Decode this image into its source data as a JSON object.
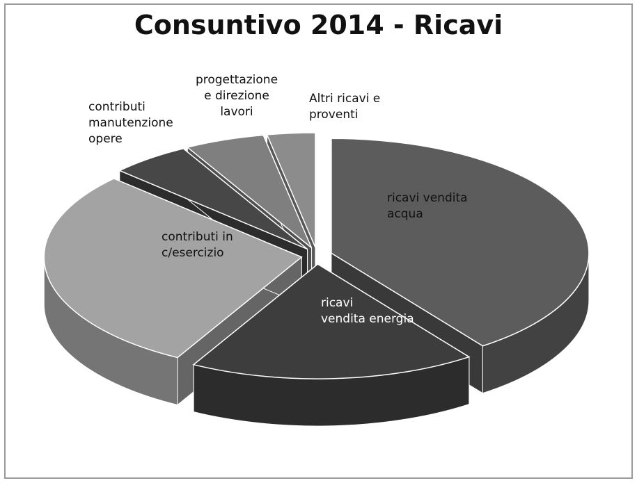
{
  "chart_data": {
    "type": "pie",
    "title": "Consuntivo 2014 - Ricavi",
    "three_d": true,
    "exploded": true,
    "legend": "none",
    "slices": [
      {
        "label": "ricavi          vendita\nacqua",
        "value": 40,
        "color": "#5c5c5c"
      },
      {
        "label": "ricavi\nvendita energia",
        "value": 18,
        "color": "#3d3d3d"
      },
      {
        "label": "contributi          in\nc/esercizio",
        "value": 29,
        "color": "#a3a3a3"
      },
      {
        "label": "contributi\nmanutenzione\nopere",
        "value": 5,
        "color": "#474747"
      },
      {
        "label": "progettazione\ne direzione\nlavori",
        "value": 5,
        "color": "#7f7f7f"
      },
      {
        "label": "Altri ricavi e\nproventi",
        "value": 3,
        "color": "#8c8c8c"
      }
    ]
  }
}
